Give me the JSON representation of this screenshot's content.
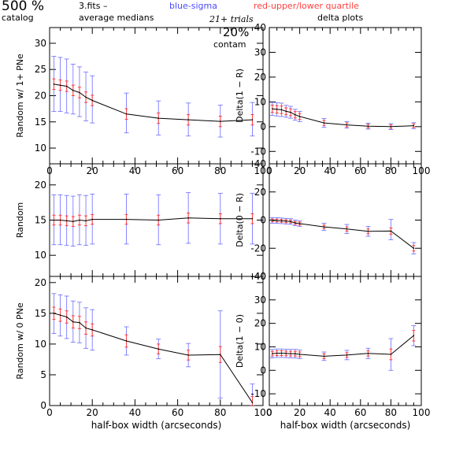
{
  "header": {
    "pct": "500 %",
    "catalog": "catalog",
    "file": "3.fits  –",
    "medians": "average medians",
    "blue_legend": "blue-sigma",
    "red_legend": "red-upper/lower quartile",
    "trials": "21+ trials",
    "contam_pct": "20%",
    "contam": "contam",
    "delta": "delta plots"
  },
  "colors": {
    "line": "#000000",
    "sigma": "#6a6aff",
    "quartile": "#ff3a3a",
    "blue_text": "#4b4bff",
    "red_text": "#ff4040"
  },
  "chart_data": [
    {
      "type": "line",
      "ylabel": "Random w/ 1+ PNe",
      "xlabel": "",
      "xlim": [
        0,
        100
      ],
      "ylim": [
        7,
        33
      ],
      "xticks": [
        0,
        20,
        40,
        60,
        80,
        100
      ],
      "yticks": [
        10,
        15,
        20,
        25,
        30
      ],
      "show_xticklabels": true,
      "x": [
        2,
        5,
        8,
        11,
        14,
        17,
        20,
        36,
        51,
        65,
        80,
        95
      ],
      "y": [
        22.2,
        22,
        21.8,
        21,
        20.6,
        19.7,
        19.1,
        16.5,
        15.7,
        15.4,
        15.1,
        15.4
      ],
      "sigma_lower": [
        17,
        17,
        16.7,
        16.5,
        16,
        15.2,
        14.8,
        12.9,
        12.5,
        12.3,
        12.1,
        12.3
      ],
      "sigma_upper": [
        27.5,
        27.3,
        27,
        26,
        25.5,
        24.5,
        23.8,
        20.5,
        19,
        18.6,
        18.2,
        18.7
      ],
      "quartile_lower": [
        21.2,
        21,
        20.8,
        20,
        19.6,
        18.7,
        18.1,
        15.5,
        14.7,
        14.4,
        14.1,
        14.4
      ],
      "quartile_upper": [
        23.2,
        23,
        22.8,
        22,
        21.6,
        20.7,
        20.1,
        17.5,
        16.7,
        16.4,
        16.1,
        16.4
      ]
    },
    {
      "type": "line",
      "ylabel": "Delta(1 − R)",
      "xlabel": "",
      "xlim": [
        0,
        100
      ],
      "ylim": [
        -15,
        40
      ],
      "xticks": [
        0,
        20,
        40,
        60,
        80,
        100
      ],
      "yticks": [
        -10,
        0,
        10,
        20,
        30,
        40
      ],
      "show_xticklabels": true,
      "x": [
        2,
        5,
        8,
        11,
        14,
        17,
        20,
        36,
        51,
        65,
        80,
        95
      ],
      "y": [
        7.2,
        7,
        6.8,
        6.2,
        5.8,
        4.8,
        4.1,
        1.5,
        0.7,
        0.2,
        0,
        0.4
      ],
      "sigma_lower": [
        4.5,
        4.3,
        4.1,
        3.8,
        3.4,
        2.6,
        2,
        -0.3,
        -0.6,
        -1,
        -1.2,
        -0.8
      ],
      "sigma_upper": [
        9.8,
        9.7,
        9.5,
        8.6,
        8.2,
        7,
        6.2,
        3.3,
        2,
        1.4,
        1.2,
        1.6
      ],
      "quartile_lower": [
        5.7,
        5.5,
        5.3,
        4.8,
        4.4,
        3.5,
        2.9,
        0.5,
        -0.1,
        -0.5,
        -0.7,
        -0.3
      ],
      "quartile_upper": [
        8.7,
        8.5,
        8.3,
        7.6,
        7.2,
        6.1,
        5.3,
        2.5,
        1.5,
        0.9,
        0.7,
        1.1
      ]
    },
    {
      "type": "line",
      "ylabel": "Random",
      "xlabel": "",
      "xlim": [
        0,
        100
      ],
      "ylim": [
        7,
        23
      ],
      "xticks": [
        0,
        20,
        40,
        60,
        80,
        100
      ],
      "yticks": [
        10,
        15,
        20
      ],
      "show_xticklabels": false,
      "x": [
        2,
        5,
        8,
        11,
        14,
        17,
        20,
        36,
        51,
        65,
        80,
        95
      ],
      "y": [
        15,
        15,
        14.9,
        14.8,
        15,
        14.9,
        15.1,
        15.1,
        15,
        15.3,
        15.2,
        15.2
      ],
      "sigma_lower": [
        11.5,
        11.5,
        11.4,
        11.3,
        11.5,
        11.4,
        11.6,
        11.6,
        11.5,
        11.7,
        11.6,
        11.6
      ],
      "sigma_upper": [
        18.6,
        18.6,
        18.5,
        18.4,
        18.6,
        18.5,
        18.7,
        18.7,
        18.6,
        18.9,
        18.8,
        18.8
      ],
      "quartile_lower": [
        14.3,
        14.3,
        14.2,
        14.1,
        14.3,
        14.2,
        14.4,
        14.4,
        14.3,
        14.6,
        14.5,
        14.5
      ],
      "quartile_upper": [
        15.7,
        15.7,
        15.6,
        15.5,
        15.7,
        15.6,
        15.8,
        15.8,
        15.7,
        16,
        15.9,
        15.9
      ]
    },
    {
      "type": "line",
      "ylabel": "Delta(0 − R)",
      "xlabel": "",
      "xlim": [
        0,
        100
      ],
      "ylim": [
        -40,
        40
      ],
      "xticks": [
        0,
        20,
        40,
        60,
        80,
        100
      ],
      "yticks": [
        -40,
        -20,
        0,
        20,
        40
      ],
      "show_xticklabels": false,
      "x": [
        2,
        5,
        8,
        11,
        14,
        17,
        20,
        36,
        51,
        65,
        80,
        95
      ],
      "y": [
        -0.2,
        -0.3,
        -0.5,
        -0.8,
        -1,
        -2,
        -2.5,
        -4.8,
        -6.3,
        -8,
        -7.8,
        -20
      ],
      "sigma_lower": [
        -2.2,
        -2.3,
        -2.5,
        -2.8,
        -3,
        -4,
        -4.5,
        -7.3,
        -9.5,
        -11.5,
        -14,
        -24
      ],
      "sigma_upper": [
        1.8,
        1.7,
        1.5,
        1.2,
        1,
        0,
        -0.5,
        -2.3,
        -3.1,
        -4.5,
        0.5,
        -16
      ],
      "quartile_lower": [
        -1.2,
        -1.3,
        -1.5,
        -1.8,
        -2,
        -3,
        -3.5,
        -6,
        -7.8,
        -9.7,
        -10,
        -22
      ],
      "quartile_upper": [
        0.8,
        0.7,
        0.5,
        0.2,
        0,
        -1,
        -1.5,
        -3.6,
        -4.8,
        -6.3,
        -5.6,
        -18
      ]
    },
    {
      "type": "line",
      "ylabel": "Random w/ 0 PNe",
      "xlabel": "half-box width (arcseconds)",
      "xlim": [
        0,
        100
      ],
      "ylim": [
        0,
        21
      ],
      "xticks": [
        0,
        20,
        40,
        60,
        80,
        100
      ],
      "yticks": [
        0,
        5,
        10,
        15,
        20
      ],
      "show_xticklabels": true,
      "x": [
        2,
        5,
        8,
        11,
        14,
        17,
        20,
        36,
        51,
        65,
        80,
        95
      ],
      "y": [
        15,
        14.7,
        14.4,
        13.6,
        13.5,
        12.6,
        12.3,
        10.5,
        9.2,
        8.2,
        8.3,
        0.5
      ],
      "sigma_lower": [
        11.7,
        11.3,
        10.9,
        10.3,
        10.2,
        9.3,
        9,
        8.2,
        7.6,
        6.3,
        1.2,
        0
      ],
      "sigma_upper": [
        18.2,
        18,
        17.8,
        17,
        16.8,
        15.9,
        15.6,
        12.8,
        10.8,
        10.1,
        15.4,
        3.5
      ],
      "quartile_lower": [
        14,
        13.7,
        13.4,
        12.6,
        12.5,
        11.6,
        11.3,
        9.5,
        8.4,
        7.4,
        7,
        0
      ],
      "quartile_upper": [
        16,
        15.7,
        15.4,
        14.6,
        14.5,
        13.6,
        13.3,
        11.5,
        10,
        9,
        9.6,
        1.5
      ]
    },
    {
      "type": "line",
      "ylabel": "Delta(1 − 0)",
      "xlabel": "half-box width (arcseconds)",
      "xlim": [
        0,
        100
      ],
      "ylim": [
        -15,
        40
      ],
      "xticks": [
        0,
        20,
        40,
        60,
        80,
        100
      ],
      "yticks": [
        -10,
        0,
        10,
        20,
        30,
        40
      ],
      "show_xticklabels": true,
      "x": [
        2,
        5,
        8,
        11,
        14,
        17,
        20,
        36,
        51,
        65,
        80,
        95
      ],
      "y": [
        7.1,
        7.3,
        7.3,
        7.2,
        7.1,
        7.1,
        6.8,
        6,
        6.5,
        7.2,
        6.8,
        14.8
      ],
      "sigma_lower": [
        5.3,
        5.5,
        5.5,
        5.4,
        5.3,
        5.3,
        5,
        4.2,
        4.5,
        5,
        0,
        10.5
      ],
      "sigma_upper": [
        8.9,
        9.1,
        9.1,
        9,
        8.9,
        8.9,
        8.6,
        7.8,
        8.5,
        9.4,
        13.5,
        19
      ],
      "quartile_lower": [
        6.1,
        6.3,
        6.3,
        6.2,
        6.1,
        6.1,
        5.8,
        5,
        5.5,
        6.1,
        4.5,
        12.5
      ],
      "quartile_upper": [
        8.1,
        8.3,
        8.3,
        8.2,
        8.1,
        8.1,
        7.8,
        7,
        7.5,
        8.3,
        9.1,
        17
      ]
    }
  ]
}
